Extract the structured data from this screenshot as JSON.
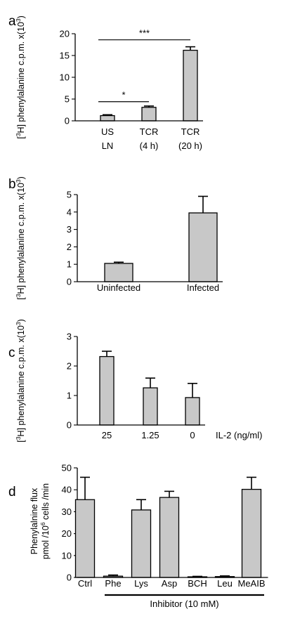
{
  "chart_data": [
    {
      "panel": "a",
      "type": "bar",
      "ylabel_prefix": "[",
      "ylabel_sup1": "3",
      "ylabel_mid": "H] phenylalanine c.p.m. x(10",
      "ylabel_sup2": "3",
      "ylabel_suffix": ")",
      "ylim": [
        0,
        20
      ],
      "yticks": [
        0,
        5,
        10,
        15,
        20
      ],
      "categories": [
        {
          "line1": "US",
          "line2": "LN"
        },
        {
          "line1": "TCR",
          "line2": "(4 h)"
        },
        {
          "line1": "TCR",
          "line2": "(20 h)"
        }
      ],
      "values": [
        1.2,
        3.1,
        16.2
      ],
      "errors": [
        0.2,
        0.3,
        0.8
      ],
      "significance": [
        {
          "from": 0,
          "to": 1,
          "label": "*",
          "y": 4.4
        },
        {
          "from": 0,
          "to": 2,
          "label": "***",
          "y": 18.6
        }
      ]
    },
    {
      "panel": "b",
      "type": "bar",
      "ylabel_prefix": "[",
      "ylabel_sup1": "3",
      "ylabel_mid": "H] phenylalanine c.p.m. x(10",
      "ylabel_sup2": "3",
      "ylabel_suffix": ")",
      "ylim": [
        0,
        5
      ],
      "yticks": [
        0,
        1,
        2,
        3,
        4,
        5
      ],
      "categories": [
        {
          "line1": "Uninfected",
          "line2": ""
        },
        {
          "line1": "Infected",
          "line2": ""
        }
      ],
      "values": [
        1.05,
        3.95
      ],
      "errors": [
        0.07,
        0.95
      ]
    },
    {
      "panel": "c",
      "type": "bar",
      "ylabel_prefix": "[",
      "ylabel_sup1": "3",
      "ylabel_mid": "H] phenylalanine c.p.m. x(10",
      "ylabel_sup2": "3",
      "ylabel_suffix": ")",
      "ylim": [
        0,
        3
      ],
      "yticks": [
        0,
        1,
        2,
        3
      ],
      "categories": [
        {
          "line1": "25",
          "line2": ""
        },
        {
          "line1": "1.25",
          "line2": ""
        },
        {
          "line1": "0",
          "line2": ""
        }
      ],
      "xlabel": "IL-2 (ng/ml)",
      "values": [
        2.32,
        1.26,
        0.93
      ],
      "errors": [
        0.18,
        0.33,
        0.48
      ]
    },
    {
      "panel": "d",
      "type": "bar",
      "ylabel_line1": "Phenylalnine flux",
      "ylabel_line2_pre": "pmol /10",
      "ylabel_line2_sup": "6",
      "ylabel_line2_post": " cells /min",
      "ylim": [
        0,
        50
      ],
      "yticks": [
        0,
        10,
        20,
        30,
        40,
        50
      ],
      "categories": [
        "Ctrl",
        "Phe",
        "Lys",
        "Asp",
        "BCH",
        "Leu",
        "MeAIB"
      ],
      "values": [
        35.5,
        0.6,
        30.8,
        36.5,
        0.3,
        0.4,
        40.2
      ],
      "errors": [
        10.2,
        0.5,
        4.7,
        2.8,
        0.2,
        0.3,
        5.5
      ],
      "group_label": "Inhibitor (10 mM)",
      "group_from": 1,
      "group_to": 6
    }
  ],
  "panel_letters": [
    "a",
    "b",
    "c",
    "d"
  ]
}
